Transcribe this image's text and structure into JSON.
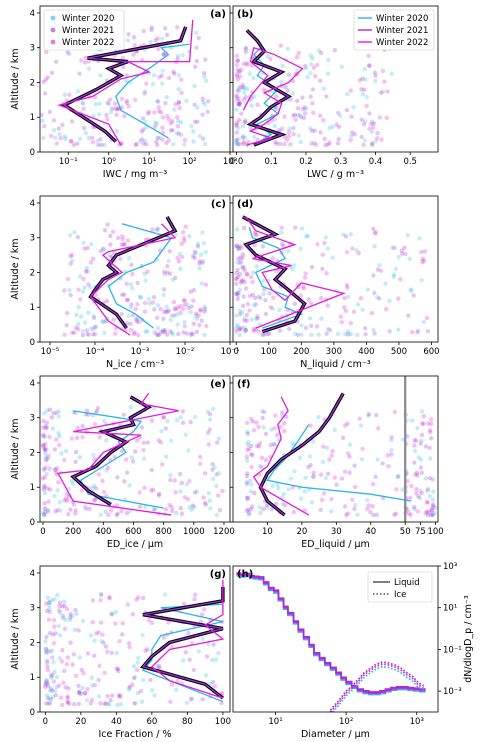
{
  "colors": {
    "w2020": "#29b6e6",
    "w2021": "#9b30d9",
    "w2022": "#e41ad8",
    "black": "#000000",
    "teal": "#22c5c5"
  },
  "chart_data": [
    {
      "id": "a",
      "type": "scatter",
      "panel_label": "(a)",
      "xlabel": "IWC / mg m⁻³",
      "ylabel": "Altitude / km",
      "xscale": "log",
      "xlim": [
        0.02,
        1000
      ],
      "ylim": [
        0,
        4.2
      ],
      "xticks": [
        {
          "v": 0.1,
          "l": "10⁻¹"
        },
        {
          "v": 1,
          "l": "10⁰"
        },
        {
          "v": 10,
          "l": "10¹"
        },
        {
          "v": 100,
          "l": "10²"
        },
        {
          "v": 1000,
          "l": "10³"
        }
      ],
      "yticks": [
        0,
        1,
        2,
        3,
        4
      ],
      "legend": {
        "position": "top-left",
        "entries": [
          "Winter 2020",
          "Winter 2021",
          "Winter 2022"
        ]
      },
      "scatter": {
        "xmin": 0.02,
        "xmax": 300,
        "ymin": 0.2,
        "ymax": 3.6
      },
      "series": [
        {
          "name": "Winter 2020",
          "x": [
            30,
            8,
            2,
            1.5,
            3,
            10,
            30,
            20,
            100
          ],
          "y": [
            0.4,
            0.8,
            1.2,
            1.6,
            2.0,
            2.4,
            2.8,
            3.0,
            3.1
          ]
        },
        {
          "name": "Winter 2021",
          "x": [
            1.5,
            0.8,
            0.08,
            0.5,
            1,
            2,
            1,
            3,
            0.3,
            60,
            80
          ],
          "y": [
            0.3,
            0.6,
            1.35,
            1.8,
            2.0,
            2.2,
            2.4,
            2.6,
            2.7,
            3.2,
            3.6
          ]
        },
        {
          "name": "Winter 2022",
          "x": [
            2,
            1,
            0.06,
            0.4,
            2,
            10,
            3,
            100,
            120
          ],
          "y": [
            0.2,
            0.8,
            1.35,
            1.6,
            2.1,
            2.3,
            2.6,
            2.6,
            3.8
          ]
        }
      ]
    },
    {
      "id": "b",
      "type": "scatter",
      "panel_label": "(b)",
      "xlabel": "LWC / g m⁻³",
      "ylabel": "",
      "xscale": "linear",
      "xlim": [
        -0.01,
        0.58
      ],
      "ylim": [
        0,
        4.2
      ],
      "xticks": [
        {
          "v": 0,
          "l": "0.0"
        },
        {
          "v": 0.1,
          "l": "0.1"
        },
        {
          "v": 0.2,
          "l": "0.2"
        },
        {
          "v": 0.3,
          "l": "0.3"
        },
        {
          "v": 0.4,
          "l": "0.4"
        },
        {
          "v": 0.5,
          "l": "0.5"
        }
      ],
      "yticks": [
        0,
        1,
        2,
        3,
        4
      ],
      "legend": {
        "position": "top-right",
        "entries": [
          "Winter 2020",
          "Winter 2021",
          "Winter 2022"
        ]
      },
      "scatter": {
        "xmin": 0.0,
        "xmax": 0.45,
        "ymin": 0.2,
        "ymax": 3.1
      },
      "series": [
        {
          "name": "Winter 2020",
          "x": [
            0.05,
            0.1,
            0.06,
            0.12,
            0.08,
            0.12,
            0.06,
            0.08,
            0.05,
            0.07
          ],
          "y": [
            0.2,
            0.5,
            0.8,
            1.1,
            1.4,
            1.8,
            2.2,
            2.5,
            2.8,
            3.0
          ]
        },
        {
          "name": "Winter 2021",
          "x": [
            0.05,
            0.13,
            0.04,
            0.07,
            0.1,
            0.15,
            0.08,
            0.13,
            0.05,
            0.08,
            0.06,
            0.03
          ],
          "y": [
            0.2,
            0.5,
            0.8,
            1.0,
            1.3,
            1.6,
            2.0,
            2.3,
            2.6,
            2.9,
            3.2,
            3.5
          ]
        },
        {
          "name": "Winter 2022",
          "x": [
            0.03,
            0.1,
            0.04,
            0.08,
            0.12,
            0.13,
            0.08,
            0.15,
            0.19,
            0.11,
            0.05,
            0.04,
            0.09,
            0.04,
            0.02
          ],
          "y": [
            0.2,
            0.4,
            0.6,
            0.8,
            1.1,
            1.4,
            1.7,
            2.0,
            2.4,
            2.8,
            3.0,
            2.6,
            2.2,
            1.6,
            1.2
          ]
        }
      ]
    },
    {
      "id": "c",
      "type": "scatter",
      "panel_label": "(c)",
      "xlabel": "N_ice / cm⁻³",
      "ylabel": "Altitude / km",
      "xscale": "log",
      "xlim": [
        6e-06,
        0.1
      ],
      "ylim": [
        0,
        4.2
      ],
      "xticks": [
        {
          "v": 1e-05,
          "l": "10⁻⁵"
        },
        {
          "v": 0.0001,
          "l": "10⁻⁴"
        },
        {
          "v": 0.001,
          "l": "10⁻³"
        },
        {
          "v": 0.01,
          "l": "10⁻²"
        },
        {
          "v": 0.1,
          "l": "10⁻¹"
        }
      ],
      "yticks": [
        0,
        1,
        2,
        3,
        4
      ],
      "scatter": {
        "xmin": 2e-05,
        "xmax": 0.03,
        "ymin": 0.2,
        "ymax": 3.4
      },
      "series": [
        {
          "name": "Winter 2020",
          "x": [
            0.002,
            0.0008,
            0.0003,
            0.0002,
            0.0005,
            0.002,
            0.003,
            0.005,
            0.0004
          ],
          "y": [
            0.4,
            0.8,
            1.1,
            1.6,
            2.0,
            2.3,
            2.6,
            3.0,
            3.4
          ]
        },
        {
          "name": "Winter 2021",
          "x": [
            0.0005,
            0.0003,
            8e-05,
            0.0001,
            0.00015,
            0.0003,
            0.0002,
            0.0003,
            0.006,
            0.004
          ],
          "y": [
            0.4,
            0.8,
            1.3,
            1.5,
            1.8,
            2.0,
            2.2,
            2.5,
            3.2,
            3.6
          ]
        },
        {
          "name": "Winter 2022",
          "x": [
            0.0006,
            0.0002,
            8e-05,
            0.0002,
            0.0004,
            0.00015,
            0.0002,
            0.006,
            0.003
          ],
          "y": [
            0.2,
            0.6,
            1.3,
            1.8,
            2.0,
            2.5,
            2.6,
            3.0,
            3.4
          ]
        }
      ]
    },
    {
      "id": "d",
      "type": "scatter",
      "panel_label": "(d)",
      "xlabel": "N_liquid / cm⁻³",
      "ylabel": "",
      "xscale": "linear",
      "xlim": [
        -10,
        620
      ],
      "ylim": [
        0,
        4.2
      ],
      "xticks": [
        {
          "v": 0,
          "l": "0"
        },
        {
          "v": 100,
          "l": "100"
        },
        {
          "v": 200,
          "l": "200"
        },
        {
          "v": 300,
          "l": "300"
        },
        {
          "v": 400,
          "l": "400"
        },
        {
          "v": 500,
          "l": "500"
        },
        {
          "v": 600,
          "l": "600"
        }
      ],
      "yticks": [
        0,
        1,
        2,
        3,
        4
      ],
      "scatter": {
        "xmin": 0,
        "xmax": 600,
        "ymin": 0.2,
        "ymax": 3.3
      },
      "series": [
        {
          "name": "Winter 2020",
          "x": [
            80,
            200,
            150,
            160,
            80,
            60,
            150,
            130,
            50,
            40
          ],
          "y": [
            0.4,
            0.8,
            1.0,
            1.3,
            1.6,
            2.0,
            2.4,
            2.7,
            3.0,
            3.3
          ]
        },
        {
          "name": "Winter 2021",
          "x": [
            80,
            180,
            210,
            160,
            120,
            150,
            60,
            30,
            120,
            20
          ],
          "y": [
            0.3,
            0.6,
            1.1,
            1.5,
            1.8,
            2.1,
            2.5,
            2.8,
            3.1,
            3.6
          ]
        },
        {
          "name": "Winter 2022",
          "x": [
            60,
            330,
            200,
            150,
            110,
            80,
            170,
            50,
            180,
            60,
            30
          ],
          "y": [
            0.4,
            1.4,
            1.7,
            1.2,
            1.5,
            2.0,
            2.2,
            2.4,
            2.8,
            3.2,
            3.6
          ]
        }
      ]
    },
    {
      "id": "e",
      "type": "scatter",
      "panel_label": "(e)",
      "xlabel": "ED_ice / μm",
      "ylabel": "Altitude / km",
      "xscale": "linear",
      "xlim": [
        -20,
        1240
      ],
      "ylim": [
        0,
        4.2
      ],
      "xticks": [
        {
          "v": 0,
          "l": "0"
        },
        {
          "v": 200,
          "l": "200"
        },
        {
          "v": 400,
          "l": "400"
        },
        {
          "v": 600,
          "l": "600"
        },
        {
          "v": 800,
          "l": "800"
        },
        {
          "v": 1000,
          "l": "1000"
        },
        {
          "v": 1200,
          "l": "1200"
        }
      ],
      "yticks": [
        0,
        1,
        2,
        3,
        4
      ],
      "scatter": {
        "xmin": 0,
        "xmax": 1200,
        "ymin": 0.2,
        "ymax": 3.3
      },
      "series": [
        {
          "name": "Winter 2020",
          "x": [
            800,
            300,
            250,
            400,
            550,
            500,
            600,
            650,
            200
          ],
          "y": [
            0.4,
            0.8,
            1.2,
            1.6,
            2.0,
            2.3,
            2.6,
            2.9,
            3.2
          ]
        },
        {
          "name": "Winter 2021",
          "x": [
            450,
            300,
            200,
            350,
            450,
            550,
            400,
            600,
            580,
            700,
            580
          ],
          "y": [
            0.5,
            0.9,
            1.3,
            1.6,
            2.0,
            2.3,
            2.6,
            2.8,
            3.0,
            3.3,
            3.6
          ]
        },
        {
          "name": "Winter 2022",
          "x": [
            850,
            200,
            100,
            300,
            400,
            500,
            650,
            200,
            900,
            650,
            700
          ],
          "y": [
            0.2,
            0.6,
            1.4,
            1.5,
            2.0,
            2.2,
            2.5,
            2.6,
            3.2,
            3.4,
            3.7
          ]
        }
      ]
    },
    {
      "id": "f",
      "type": "scatter",
      "panel_label": "(f)",
      "xlabel": "ED_liquid / μm",
      "ylabel": "",
      "xscale": "broken",
      "xlim": [
        0,
        104
      ],
      "ylim": [
        0,
        4.2
      ],
      "xticks": [
        {
          "v": 10,
          "l": "10"
        },
        {
          "v": 20,
          "l": "20"
        },
        {
          "v": 30,
          "l": "30"
        },
        {
          "v": 40,
          "l": "40"
        },
        {
          "v": 50,
          "l": "50"
        },
        {
          "v": 75,
          "l": "75"
        },
        {
          "v": 100,
          "l": "100"
        }
      ],
      "yticks": [
        0,
        1,
        2,
        3,
        4
      ],
      "scatter": {
        "xmin": 4,
        "xmax": 100,
        "ymin": 0.2,
        "ymax": 3.2
      },
      "series": [
        {
          "name": "Winter 2020",
          "x": [
            60,
            40,
            20,
            10,
            12,
            15,
            18,
            20,
            22
          ],
          "y": [
            0.6,
            0.8,
            1.0,
            1.2,
            1.5,
            1.8,
            2.2,
            2.5,
            2.8
          ]
        },
        {
          "name": "Winter 2021",
          "x": [
            15,
            10,
            8,
            10,
            14,
            20,
            25,
            28,
            32
          ],
          "y": [
            0.2,
            0.6,
            1.0,
            1.4,
            1.8,
            2.2,
            2.6,
            3.0,
            3.7
          ]
        },
        {
          "name": "Winter 2022",
          "x": [
            22,
            15,
            8,
            6,
            10,
            12,
            14,
            13,
            16,
            14
          ],
          "y": [
            0.2,
            0.6,
            1.0,
            1.3,
            1.6,
            2.0,
            2.4,
            2.8,
            3.2,
            3.6
          ]
        }
      ]
    },
    {
      "id": "g",
      "type": "scatter",
      "panel_label": "(g)",
      "xlabel": "Ice Fraction / %",
      "ylabel": "Altitude / km",
      "xscale": "linear",
      "xlim": [
        -3,
        104
      ],
      "ylim": [
        0,
        4.2
      ],
      "xticks": [
        {
          "v": 0,
          "l": "0"
        },
        {
          "v": 20,
          "l": "20"
        },
        {
          "v": 40,
          "l": "40"
        },
        {
          "v": 60,
          "l": "60"
        },
        {
          "v": 80,
          "l": "80"
        },
        {
          "v": 100,
          "l": "100"
        }
      ],
      "yticks": [
        0,
        1,
        2,
        3,
        4
      ],
      "scatter": {
        "xmin": 0,
        "xmax": 100,
        "ymin": 0.2,
        "ymax": 3.4
      },
      "series": [
        {
          "name": "Winter 2020",
          "x": [
            100,
            75,
            55,
            60,
            60,
            65,
            100,
            65,
            100
          ],
          "y": [
            0.3,
            0.8,
            1.2,
            1.5,
            1.8,
            2.2,
            2.6,
            3.0,
            3.1
          ]
        },
        {
          "name": "Winter 2021",
          "x": [
            100,
            90,
            55,
            60,
            70,
            100,
            55,
            100,
            100
          ],
          "y": [
            0.4,
            0.8,
            1.3,
            1.6,
            2.0,
            2.4,
            2.8,
            3.2,
            3.6
          ]
        },
        {
          "name": "Winter 2022",
          "x": [
            100,
            70,
            60,
            70,
            100,
            90,
            100,
            100,
            100
          ],
          "y": [
            0.4,
            0.9,
            1.3,
            1.8,
            2.1,
            2.5,
            2.8,
            3.1,
            3.8
          ]
        }
      ]
    },
    {
      "id": "h",
      "type": "line",
      "panel_label": "(h)",
      "xlabel": "Diameter / μm",
      "ylabel": "dN/dlogD_p / cm⁻³",
      "xscale": "log",
      "yscale": "log",
      "xlim": [
        2.5,
        2000
      ],
      "ylim": [
        0.0001,
        1000
      ],
      "xticks": [
        {
          "v": 10,
          "l": "10¹"
        },
        {
          "v": 100,
          "l": "10²"
        },
        {
          "v": 1000,
          "l": "10³"
        }
      ],
      "yticks": [
        {
          "v": 0.001,
          "l": "10⁻³"
        },
        {
          "v": 0.1,
          "l": "10⁻¹"
        },
        {
          "v": 10,
          "l": "10¹"
        },
        {
          "v": 1000,
          "l": "10³"
        }
      ],
      "legend": {
        "position": "top-right",
        "entries": [
          "Liquid",
          "Ice"
        ]
      },
      "liquid_x": [
        2.8,
        3.2,
        3.7,
        4.3,
        5.0,
        5.8,
        6.8,
        8,
        9.5,
        11,
        13,
        15,
        18,
        21,
        25,
        30,
        35,
        42,
        50,
        60,
        72,
        85,
        100,
        120,
        145,
        175,
        210,
        250,
        300,
        360,
        430,
        520,
        620,
        750,
        900,
        1100,
        1300
      ],
      "liquid_y": [
        400,
        350,
        380,
        300,
        280,
        260,
        150,
        80,
        60,
        25,
        10,
        5,
        2,
        0.8,
        0.35,
        0.15,
        0.06,
        0.035,
        0.02,
        0.012,
        0.007,
        0.004,
        0.0025,
        0.0016,
        0.0011,
        0.0009,
        0.0008,
        0.0008,
        0.0009,
        0.0011,
        0.0013,
        0.0014,
        0.0014,
        0.0013,
        0.0012,
        0.0011,
        0.001
      ],
      "ice_x": [
        60,
        80,
        100,
        125,
        150,
        180,
        220,
        270,
        330,
        400,
        500,
        600,
        730,
        880,
        1050,
        1250
      ],
      "ice_y": [
        0.0001,
        0.0003,
        0.0008,
        0.0016,
        0.003,
        0.006,
        0.01,
        0.016,
        0.02,
        0.018,
        0.014,
        0.01,
        0.006,
        0.004,
        0.002,
        0.0015
      ]
    }
  ]
}
